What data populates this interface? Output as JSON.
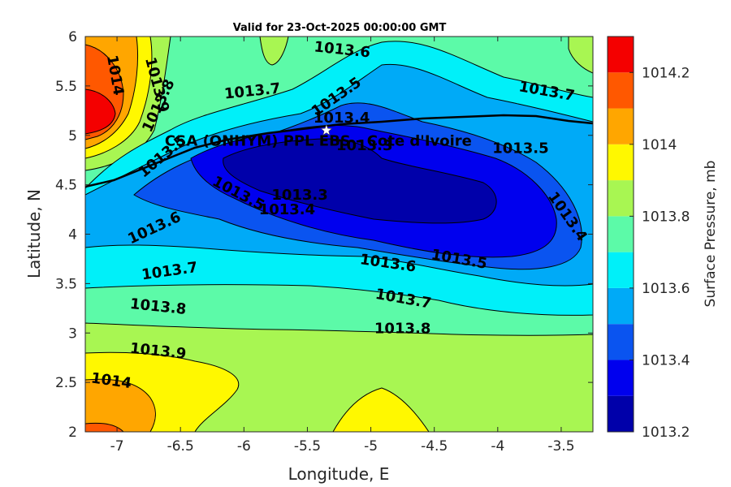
{
  "title": "Valid for 23-Oct-2025 00:00:00 GMT",
  "map": {
    "xlabel": "Longitude, E",
    "ylabel": "Latitude, N",
    "xlim": [
      -7.25,
      -3.25
    ],
    "ylim": [
      2,
      6
    ],
    "xticks": [
      -7,
      -6.5,
      -6,
      -5.5,
      -5,
      -4.5,
      -4,
      -3.5
    ],
    "xtick_labels": [
      "-7",
      "-6.5",
      "-6",
      "-5.5",
      "-5",
      "-4.5",
      "-4",
      "-3.5"
    ],
    "yticks": [
      2,
      2.5,
      3,
      3.5,
      4,
      4.5,
      5,
      5.5,
      6
    ],
    "ytick_labels": [
      "2",
      "2.5",
      "3",
      "3.5",
      "4",
      "4.5",
      "5",
      "5.5",
      "6"
    ],
    "station": {
      "name": "CSA (ONHYM) PPL EBS - Cote d'Ivoire",
      "lon": -5.35,
      "lat": 5.05,
      "marker": "white-star"
    },
    "contour_labels": [
      {
        "text": "1013.6",
        "lon": -5.23,
        "lat": 5.82
      },
      {
        "text": "1013.7",
        "lon": -5.93,
        "lat": 5.4
      },
      {
        "text": "1013.5",
        "lon": -5.25,
        "lat": 5.35
      },
      {
        "text": "1013.7",
        "lon": -3.62,
        "lat": 5.4
      },
      {
        "text": "1013.4",
        "lon": -5.23,
        "lat": 5.13
      },
      {
        "text": "1013.3",
        "lon": -5.05,
        "lat": 4.85
      },
      {
        "text": "1013.5",
        "lon": -3.82,
        "lat": 4.82
      },
      {
        "text": "1013.5",
        "lon": -6.06,
        "lat": 4.37
      },
      {
        "text": "1013.3",
        "lon": -5.56,
        "lat": 4.35
      },
      {
        "text": "1013.4",
        "lon": -5.66,
        "lat": 4.2
      },
      {
        "text": "1013.6",
        "lon": -6.69,
        "lat": 4.02
      },
      {
        "text": "1013.4",
        "lon": -3.48,
        "lat": 4.15
      },
      {
        "text": "1013.6",
        "lon": -4.87,
        "lat": 3.66
      },
      {
        "text": "1013.5",
        "lon": -4.31,
        "lat": 3.7
      },
      {
        "text": "1013.7",
        "lon": -6.58,
        "lat": 3.58
      },
      {
        "text": "1013.7",
        "lon": -4.75,
        "lat": 3.3
      },
      {
        "text": "1013.8",
        "lon": -6.68,
        "lat": 3.22
      },
      {
        "text": "1013.8",
        "lon": -4.75,
        "lat": 3.0
      },
      {
        "text": "1013.9",
        "lon": -6.68,
        "lat": 2.77
      },
      {
        "text": "1014",
        "lon": -7.05,
        "lat": 2.47
      },
      {
        "text": "1014",
        "lon": -7.05,
        "lat": 5.6
      },
      {
        "text": "1013.9",
        "lon": -6.72,
        "lat": 5.5
      },
      {
        "text": "1013.8",
        "lon": -6.64,
        "lat": 5.28
      },
      {
        "text": "1013.5",
        "lon": -6.62,
        "lat": 4.75
      }
    ]
  },
  "colorbar": {
    "label": "Surface Pressure, mb",
    "range": [
      1013.2,
      1014.3
    ],
    "levels": [
      1013.2,
      1013.3,
      1013.4,
      1013.5,
      1013.6,
      1013.7,
      1013.8,
      1013.9,
      1014.0,
      1014.1,
      1014.2,
      1014.3
    ],
    "colors": [
      "#0000aa",
      "#0000ee",
      "#0a54f0",
      "#00aaf7",
      "#00f0f9",
      "#5cfaa8",
      "#a8f652",
      "#fff800",
      "#ffa600",
      "#ff5800",
      "#f40000",
      "#aa0000"
    ],
    "tick_values": [
      1013.2,
      1013.4,
      1013.6,
      1013.8,
      1014,
      1014.2
    ],
    "tick_labels": [
      "1013.2",
      "1013.4",
      "1013.6",
      "1013.8",
      "1014",
      "1014.2"
    ]
  }
}
